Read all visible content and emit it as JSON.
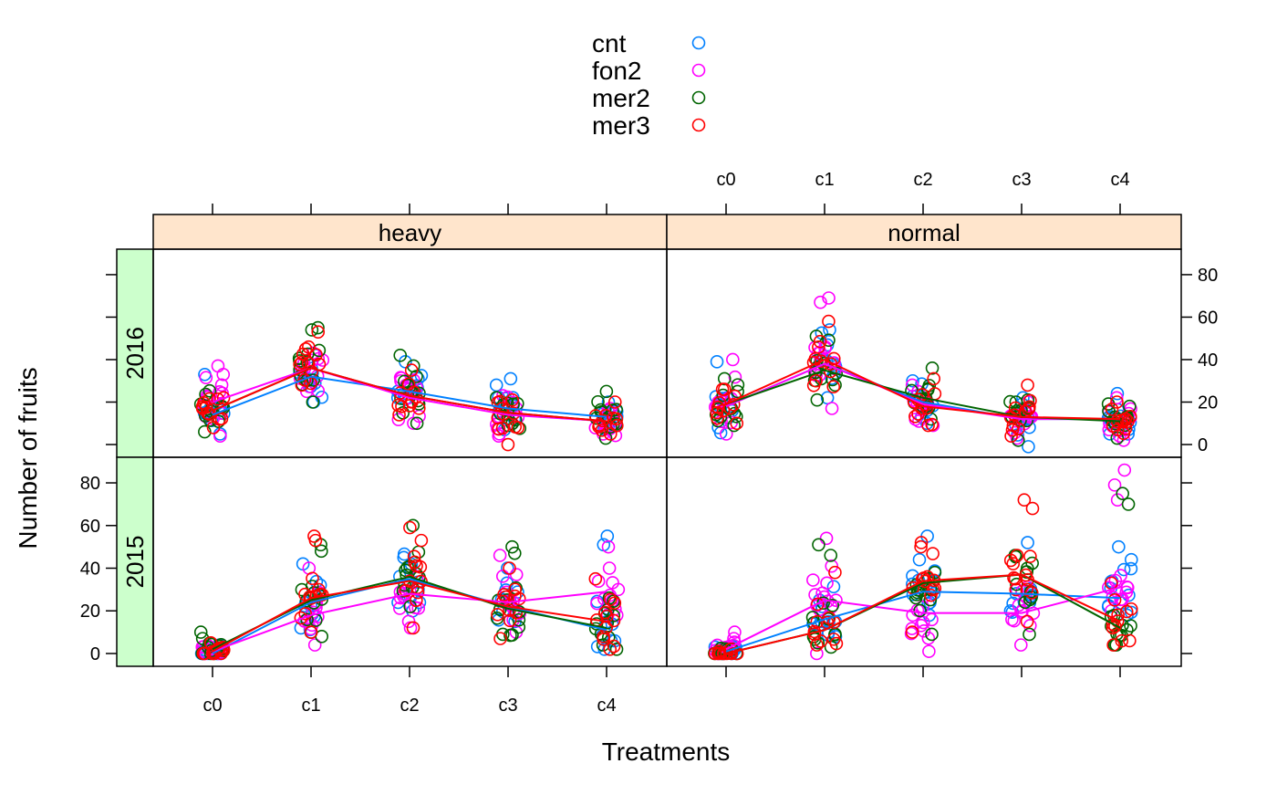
{
  "chart_data": {
    "type": "scatter",
    "subtype": "lattice panel plot: jittered points with group-mean lines",
    "xlabel": "Treatments",
    "ylabel": "Number of fruits",
    "categories": [
      "c0",
      "c1",
      "c2",
      "c3",
      "c4"
    ],
    "ylim": [
      -6,
      92
    ],
    "yticks": [
      0,
      20,
      40,
      60,
      80
    ],
    "grid": false,
    "legend_position": "top",
    "columns": [
      "heavy",
      "normal"
    ],
    "rows": [
      "2016",
      "2015"
    ],
    "groups": [
      {
        "name": "cnt",
        "color": "#0080ff"
      },
      {
        "name": "fon2",
        "color": "#ff00ff"
      },
      {
        "name": "mer2",
        "color": "#006400"
      },
      {
        "name": "mer3",
        "color": "#ff0000"
      }
    ],
    "panels": [
      {
        "column": "heavy",
        "row": "2016",
        "means": {
          "cnt": [
            14,
            32,
            25,
            17,
            13
          ],
          "fon2": [
            20,
            36,
            22,
            14,
            11
          ],
          "mer2": [
            16,
            36,
            23,
            15,
            11
          ],
          "mer3": [
            16,
            36,
            23,
            15,
            11
          ]
        },
        "spread": [
          [
            4,
            37
          ],
          [
            20,
            55
          ],
          [
            10,
            42
          ],
          [
            0,
            31
          ],
          [
            3,
            25
          ]
        ],
        "points": {
          "cnt": [
            [
              5,
              33
            ],
            [
              20,
              42
            ],
            [
              22,
              39
            ],
            [
              7,
              28,
              31
            ],
            [
              10,
              20
            ]
          ],
          "fon2": [
            [
              4,
              37,
              33
            ],
            [
              25,
              35
            ],
            [
              10,
              30
            ],
            [
              4,
              23
            ],
            [
              5,
              17
            ]
          ],
          "mer2": [
            [
              6,
              19
            ],
            [
              20,
              55,
              54
            ],
            [
              10,
              42,
              37
            ],
            [
              9,
              19
            ],
            [
              3,
              25
            ]
          ],
          "mer3": [
            [
              8,
              22
            ],
            [
              28,
              53,
              45
            ],
            [
              14,
              35
            ],
            [
              0,
              21
            ],
            [
              5,
              20
            ]
          ]
        }
      },
      {
        "column": "normal",
        "row": "2016",
        "means": {
          "cnt": [
            18,
            38,
            20,
            12,
            12
          ],
          "fon2": [
            18,
            38,
            19,
            12,
            12
          ],
          "mer2": [
            19,
            35,
            22,
            13,
            11
          ],
          "mer3": [
            19,
            40,
            18,
            13,
            12
          ]
        },
        "spread": [
          [
            5,
            40
          ],
          [
            17,
            69
          ],
          [
            9,
            36
          ],
          [
            -1,
            28
          ],
          [
            2,
            24
          ]
        ],
        "points": {
          "cnt": [
            [
              8,
              39
            ],
            [
              22,
              54
            ],
            [
              10,
              30
            ],
            [
              -1,
              22
            ],
            [
              5,
              24
            ]
          ],
          "fon2": [
            [
              5,
              40
            ],
            [
              17,
              69,
              67
            ],
            [
              11,
              28
            ],
            [
              3,
              20
            ],
            [
              2,
              22
            ]
          ],
          "mer2": [
            [
              9,
              31
            ],
            [
              21,
              51
            ],
            [
              12,
              36
            ],
            [
              2,
              21
            ],
            [
              3,
              18
            ]
          ],
          "mer3": [
            [
              10,
              26
            ],
            [
              30,
              58
            ],
            [
              9,
              31
            ],
            [
              4,
              28
            ],
            [
              7,
              20
            ]
          ]
        }
      },
      {
        "column": "heavy",
        "row": "2015",
        "means": {
          "cnt": [
            0,
            24,
            35,
            22,
            11
          ],
          "fon2": [
            1,
            18,
            28,
            24,
            29
          ],
          "mer2": [
            2,
            25,
            36,
            21,
            12
          ],
          "mer3": [
            1,
            26,
            34,
            22,
            15
          ]
        },
        "spread": [
          [
            0,
            10
          ],
          [
            4,
            55
          ],
          [
            11,
            60
          ],
          [
            7,
            50
          ],
          [
            2,
            55
          ]
        ],
        "points": {
          "cnt": [
            [
              0,
              4
            ],
            [
              12,
              42
            ],
            [
              20,
              45
            ],
            [
              18,
              40
            ],
            [
              6,
              55,
              51
            ]
          ],
          "fon2": [
            [
              0,
              3
            ],
            [
              4,
              40
            ],
            [
              12,
              36
            ],
            [
              10,
              46
            ],
            [
              18,
              50,
              40
            ]
          ],
          "mer2": [
            [
              0,
              10,
              7
            ],
            [
              8,
              51,
              48
            ],
            [
              22,
              60
            ],
            [
              9,
              50,
              47
            ],
            [
              4,
              26
            ]
          ],
          "mer3": [
            [
              0,
              5
            ],
            [
              10,
              55,
              53
            ],
            [
              12,
              59,
              53
            ],
            [
              7,
              40
            ],
            [
              2,
              35
            ]
          ]
        }
      },
      {
        "column": "normal",
        "row": "2015",
        "means": {
          "cnt": [
            1,
            16,
            29,
            28,
            26
          ],
          "fon2": [
            2,
            25,
            19,
            19,
            31
          ],
          "mer2": [
            0,
            11,
            33,
            37,
            12
          ],
          "mer3": [
            0,
            11,
            34,
            37,
            15
          ]
        },
        "spread": [
          [
            0,
            10
          ],
          [
            0,
            54
          ],
          [
            1,
            55
          ],
          [
            4,
            72
          ],
          [
            4,
            86
          ]
        ],
        "points": {
          "cnt": [
            [
              0,
              3
            ],
            [
              10,
              25
            ],
            [
              18,
              55,
              44
            ],
            [
              20,
              52
            ],
            [
              22,
              50,
              44
            ]
          ],
          "fon2": [
            [
              0,
              10,
              7
            ],
            [
              0,
              54,
              41
            ],
            [
              1,
              18
            ],
            [
              4,
              30
            ],
            [
              20,
              86,
              79,
              72
            ]
          ],
          "mer2": [
            [
              0,
              2
            ],
            [
              5,
              51,
              46
            ],
            [
              9,
              38
            ],
            [
              9,
              24
            ],
            [
              4,
              75,
              70
            ]
          ],
          "mer3": [
            [
              0,
              2
            ],
            [
              4,
              38
            ],
            [
              10,
              52,
              50
            ],
            [
              15,
              72,
              68,
              46
            ],
            [
              6,
              33
            ]
          ]
        }
      }
    ]
  }
}
